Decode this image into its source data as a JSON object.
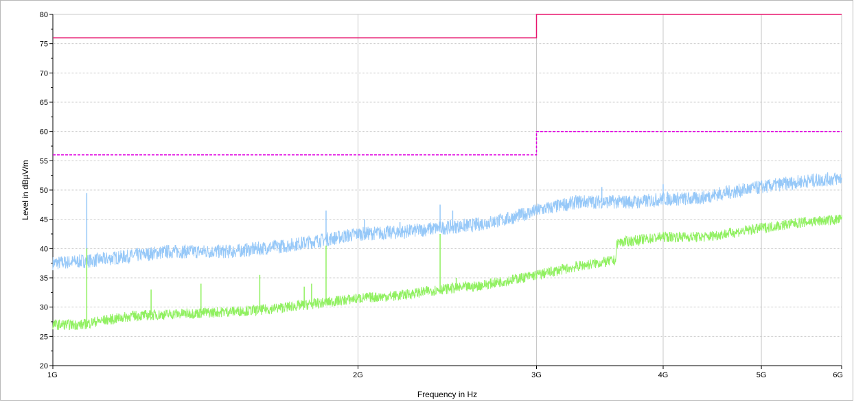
{
  "chart_data": {
    "type": "line",
    "title": "",
    "xlabel": "Frequency in Hz",
    "ylabel": "Level in dBµV/m",
    "x_scale": "log",
    "xlim": [
      1000000000,
      6000000000
    ],
    "ylim": [
      20,
      80
    ],
    "x_ticks": [
      {
        "value": 1000000000,
        "label": "1G"
      },
      {
        "value": 2000000000,
        "label": "2G"
      },
      {
        "value": 3000000000,
        "label": "3G"
      },
      {
        "value": 4000000000,
        "label": "4G"
      },
      {
        "value": 5000000000,
        "label": "5G"
      },
      {
        "value": 6000000000,
        "label": "6G"
      }
    ],
    "y_ticks": [
      20,
      25,
      30,
      35,
      40,
      45,
      50,
      55,
      60,
      65,
      70,
      75,
      80
    ],
    "grid": true,
    "colors": {
      "peak_limit": "#e8156e",
      "avg_limit": "#e000e0",
      "peak_trace": "#96c8f8",
      "avg_trace": "#90f060"
    },
    "series": [
      {
        "key": "peak_limit",
        "style": "solid-step",
        "points": [
          [
            1000000000,
            76
          ],
          [
            3000000000,
            76
          ],
          [
            3000000000,
            80
          ],
          [
            6000000000,
            80
          ]
        ]
      },
      {
        "key": "avg_limit",
        "style": "dashed-step",
        "points": [
          [
            1000000000,
            56
          ],
          [
            3000000000,
            56
          ],
          [
            3000000000,
            60
          ],
          [
            6000000000,
            60
          ]
        ]
      },
      {
        "key": "peak_trace",
        "style": "noisy",
        "points": [
          [
            1000000000,
            37.5
          ],
          [
            1100000000,
            38
          ],
          [
            1300000000,
            39.5
          ],
          [
            1500000000,
            39.5
          ],
          [
            1700000000,
            40.5
          ],
          [
            1850000000,
            41.5
          ],
          [
            2000000000,
            42.5
          ],
          [
            2200000000,
            42.8
          ],
          [
            2400000000,
            43.5
          ],
          [
            2600000000,
            44
          ],
          [
            2800000000,
            45
          ],
          [
            3000000000,
            46.5
          ],
          [
            3300000000,
            48
          ],
          [
            3600000000,
            48
          ],
          [
            3800000000,
            48
          ],
          [
            4000000000,
            48.5
          ],
          [
            4300000000,
            48.5
          ],
          [
            4600000000,
            49.5
          ],
          [
            5000000000,
            50.5
          ],
          [
            5500000000,
            51.5
          ],
          [
            6000000000,
            52
          ]
        ],
        "spikes": [
          [
            1080000000,
            49.5
          ],
          [
            1860000000,
            46.5
          ],
          [
            2030000000,
            45
          ],
          [
            2200000000,
            44.5
          ],
          [
            2410000000,
            47.5
          ],
          [
            2480000000,
            46.5
          ],
          [
            3480000000,
            50.5
          ],
          [
            4000000000,
            51
          ]
        ]
      },
      {
        "key": "avg_trace",
        "style": "noisy",
        "points": [
          [
            1000000000,
            27
          ],
          [
            1070000000,
            27
          ],
          [
            1100000000,
            27.5
          ],
          [
            1200000000,
            28.5
          ],
          [
            1400000000,
            29
          ],
          [
            1600000000,
            29.5
          ],
          [
            1800000000,
            30.5
          ],
          [
            2000000000,
            31.5
          ],
          [
            2200000000,
            32
          ],
          [
            2400000000,
            33
          ],
          [
            2600000000,
            33.5
          ],
          [
            2800000000,
            34.5
          ],
          [
            3000000000,
            35.5
          ],
          [
            3300000000,
            37
          ],
          [
            3590000000,
            38
          ],
          [
            3600000000,
            41
          ],
          [
            3800000000,
            41.5
          ],
          [
            4000000000,
            42
          ],
          [
            4400000000,
            42
          ],
          [
            5000000000,
            43.5
          ],
          [
            5500000000,
            44.5
          ],
          [
            6000000000,
            45
          ]
        ],
        "spikes": [
          [
            1080000000,
            40
          ],
          [
            1250000000,
            33
          ],
          [
            1400000000,
            34
          ],
          [
            1600000000,
            35.5
          ],
          [
            1770000000,
            33.5
          ],
          [
            1800000000,
            34
          ],
          [
            1860000000,
            40.5
          ],
          [
            2410000000,
            42.5
          ],
          [
            2500000000,
            35
          ]
        ]
      }
    ]
  }
}
